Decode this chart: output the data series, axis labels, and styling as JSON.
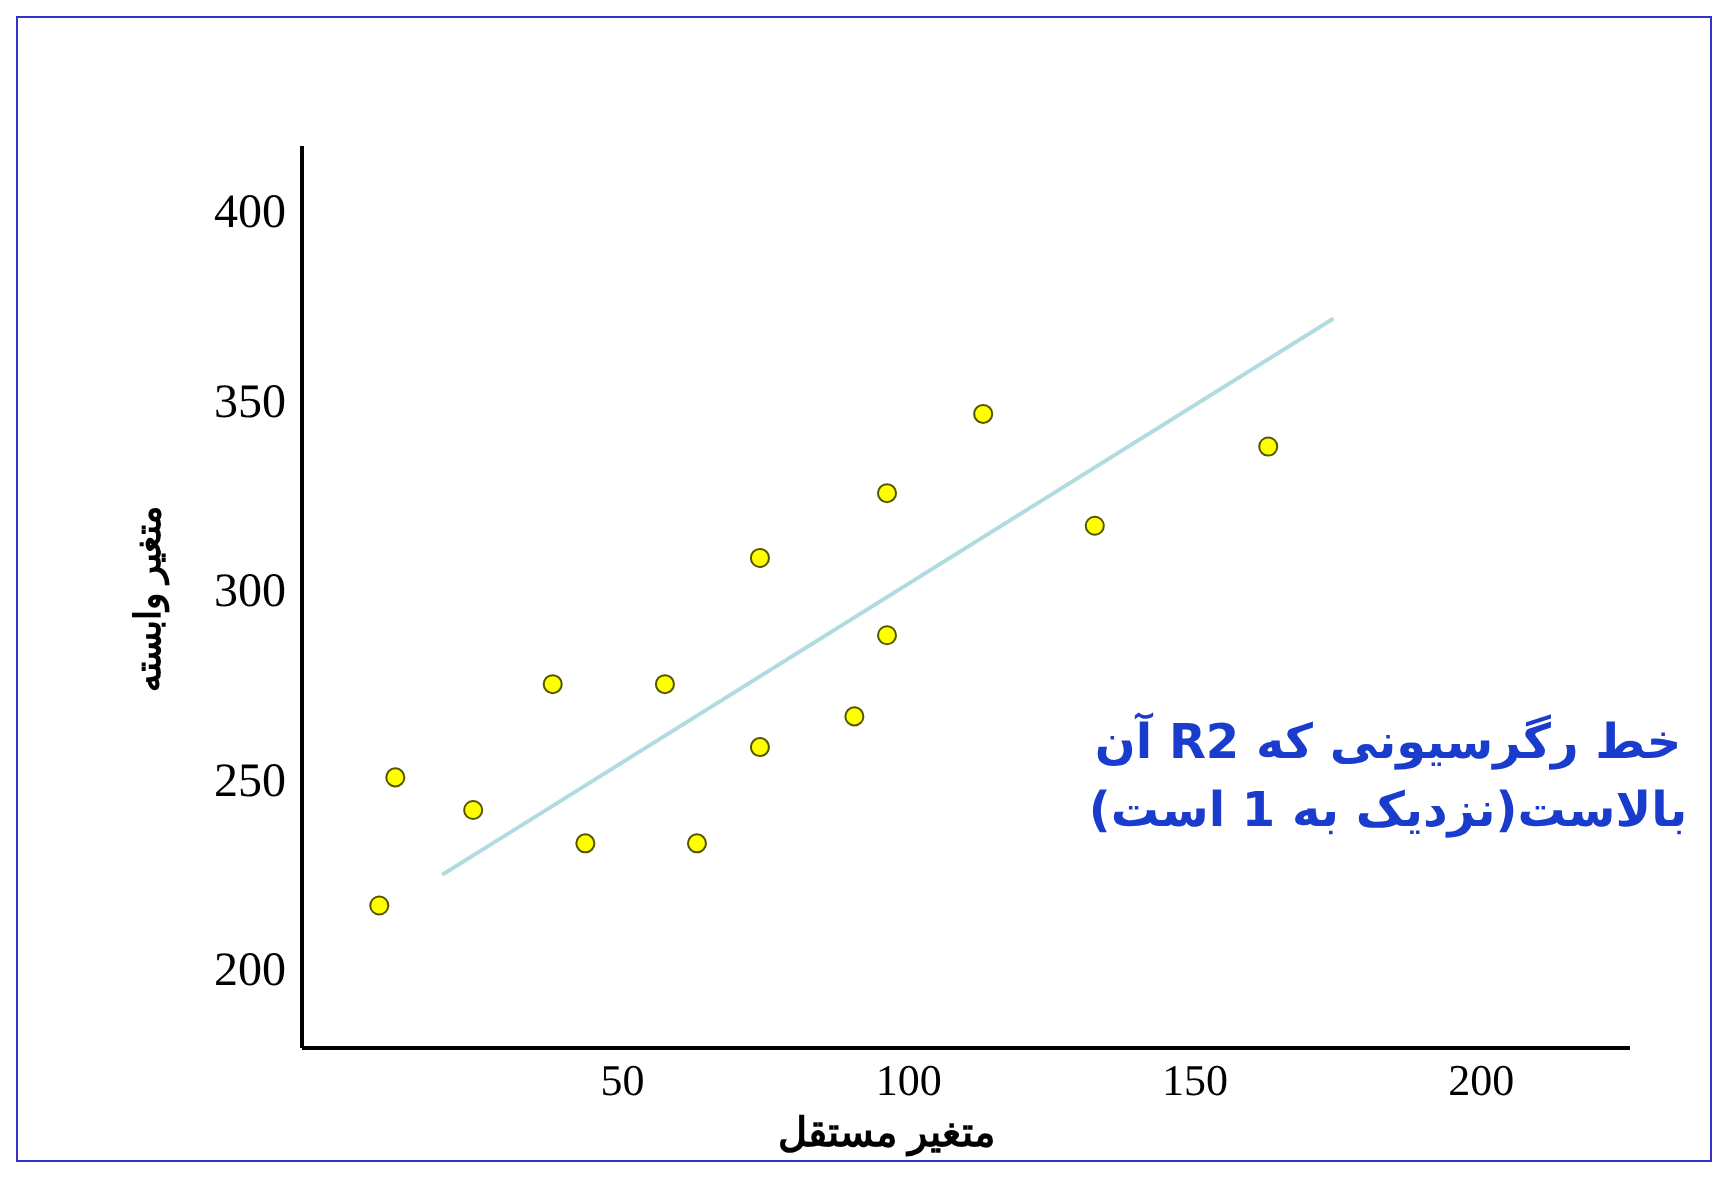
{
  "chart_data": {
    "type": "scatter",
    "xlabel": "متغیر مستقل",
    "ylabel": "متغیر وابسته",
    "annotations": [
      "خط رگرسیونی که R2 آن بالاست(نزدیک به 1 است)"
    ],
    "xlim": [
      -6,
      226
    ],
    "xticks": [
      50,
      100,
      150,
      200
    ],
    "ylim": [
      179,
      417
    ],
    "yticks": [
      200,
      250,
      300,
      350,
      400
    ],
    "series": [
      {
        "marker": "circle",
        "color": "#ffff00",
        "x": [
          7.5,
          10.3,
          23.9,
          37.8,
          43.5,
          57.4,
          63,
          74,
          74,
          90.5,
          96.2,
          96.2,
          113,
          132.5,
          162.8
        ],
        "values": [
          216.6,
          250.4,
          241.8,
          275,
          233,
          275,
          233,
          258.4,
          308.3,
          266.5,
          287.9,
          325.4,
          346.3,
          316.8,
          337.7
        ]
      },
      {
        "type": "line",
        "color": "#b0dce0",
        "x": [
          18.5,
          174.2
        ],
        "values": [
          224.7,
          371.5
        ]
      }
    ]
  }
}
